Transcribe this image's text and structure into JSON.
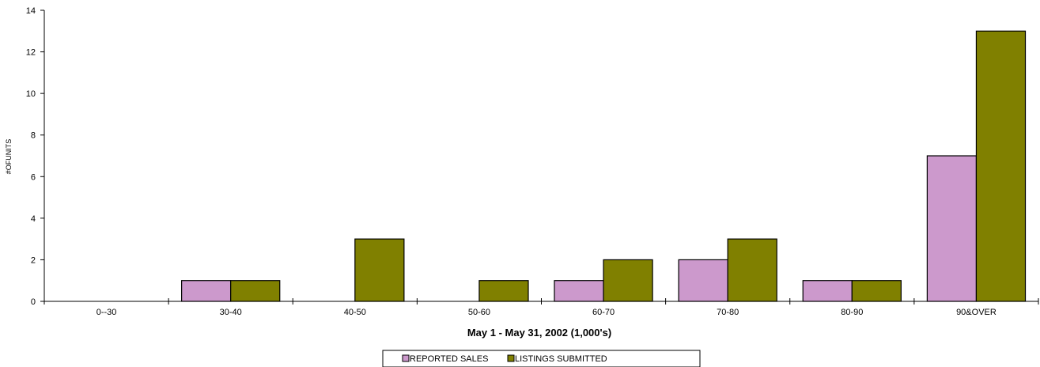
{
  "chart_data": {
    "type": "bar",
    "categories": [
      "0--30",
      "30-40",
      "40-50",
      "50-60",
      "60-70",
      "70-80",
      "80-90",
      "90&OVER"
    ],
    "series": [
      {
        "name": "REPORTED SALES",
        "values": [
          0,
          1,
          0,
          0,
          1,
          2,
          1,
          7
        ],
        "color": "#cc99cc"
      },
      {
        "name": "LISTINGS SUBMITTED",
        "values": [
          0,
          1,
          3,
          1,
          2,
          3,
          1,
          13
        ],
        "color": "#808000"
      }
    ],
    "xlabel": "May 1 - May 31, 2002 (1,000's)",
    "ylabel": "#OFUNITS",
    "ylim": [
      0,
      14
    ],
    "yticks": [
      "0",
      "2",
      "4",
      "6",
      "8",
      "10",
      "12",
      "14"
    ],
    "grid": false,
    "legend_position": "bottom-center"
  }
}
